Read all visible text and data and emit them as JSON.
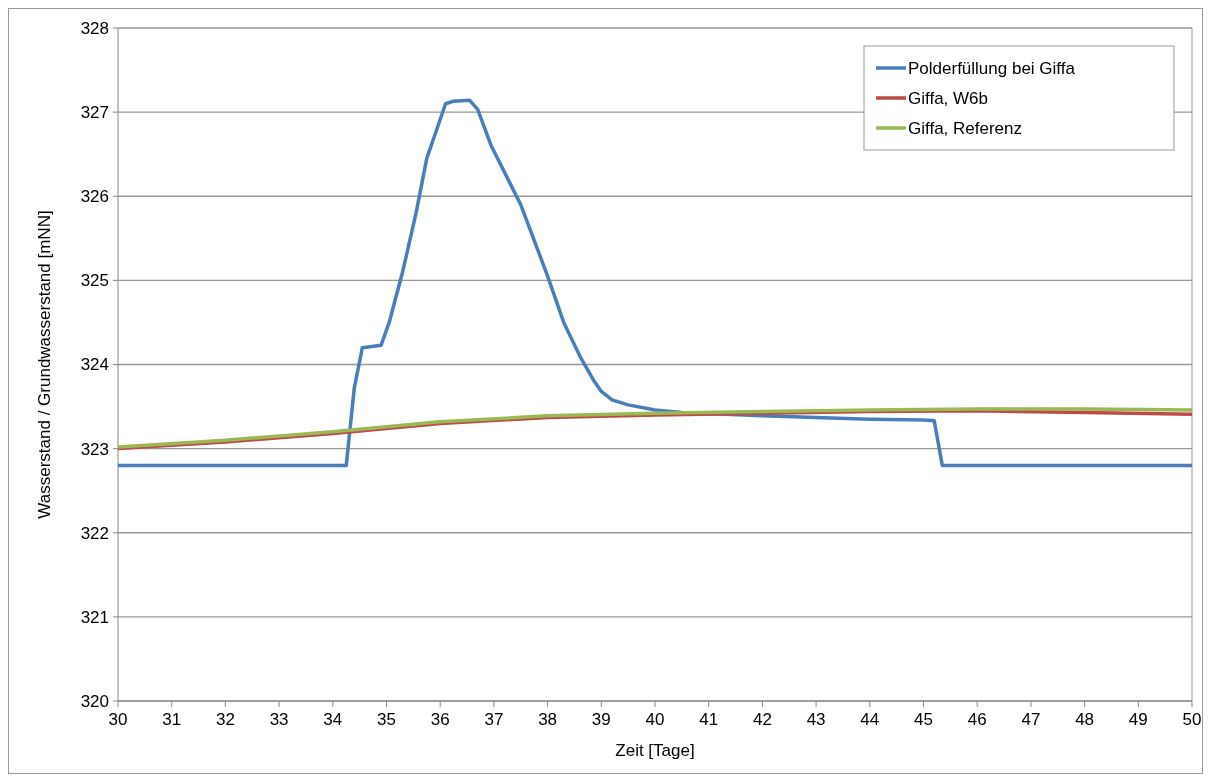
{
  "chart_data": {
    "type": "line",
    "xlabel": "Zeit [Tage]",
    "ylabel": "Wasserstand / Grundwasserstand [mNN]",
    "xlim": [
      30,
      50
    ],
    "xticks": [
      30,
      31,
      32,
      33,
      34,
      35,
      36,
      37,
      38,
      39,
      40,
      41,
      42,
      43,
      44,
      45,
      46,
      47,
      48,
      49,
      50
    ],
    "ylim": [
      320,
      328
    ],
    "yticks": [
      320,
      321,
      322,
      323,
      324,
      325,
      326,
      327,
      328
    ],
    "grid": "y",
    "legend": "top right",
    "line_style": "solid",
    "series": [
      {
        "name": "Polderfüllung bei Giffa",
        "color": "#4a7ebb",
        "x": [
          30,
          34.25,
          34.4,
          34.55,
          34.9,
          35.05,
          35.3,
          35.55,
          35.75,
          35.95,
          36.1,
          36.25,
          36.55,
          36.7,
          36.95,
          37.5,
          38.0,
          38.3,
          38.6,
          38.85,
          39.0,
          39.2,
          39.5,
          40.0,
          40.5,
          42,
          43,
          44,
          45,
          45.2,
          45.35,
          50
        ],
        "values": [
          322.8,
          322.8,
          323.72,
          324.2,
          324.23,
          324.5,
          325.1,
          325.8,
          326.45,
          326.82,
          327.1,
          327.13,
          327.14,
          327.03,
          326.6,
          325.9,
          325.05,
          324.5,
          324.1,
          323.82,
          323.68,
          323.58,
          323.52,
          323.46,
          323.43,
          323.39,
          323.37,
          323.35,
          323.34,
          323.33,
          322.8,
          322.8
        ]
      },
      {
        "name": "Giffa, W6b",
        "color": "#be4b48",
        "x": [
          30,
          32,
          34,
          36,
          38,
          40,
          42,
          44,
          46,
          48,
          50
        ],
        "values": [
          323.0,
          323.08,
          323.18,
          323.3,
          323.37,
          323.4,
          323.42,
          323.44,
          323.45,
          323.43,
          323.41
        ]
      },
      {
        "name": "Giffa, Referenz",
        "color": "#98b954",
        "x": [
          30,
          32,
          34,
          36,
          38,
          40,
          42,
          44,
          46,
          48,
          50
        ],
        "values": [
          323.02,
          323.1,
          323.2,
          323.32,
          323.39,
          323.42,
          323.44,
          323.46,
          323.47,
          323.47,
          323.46
        ]
      }
    ]
  }
}
